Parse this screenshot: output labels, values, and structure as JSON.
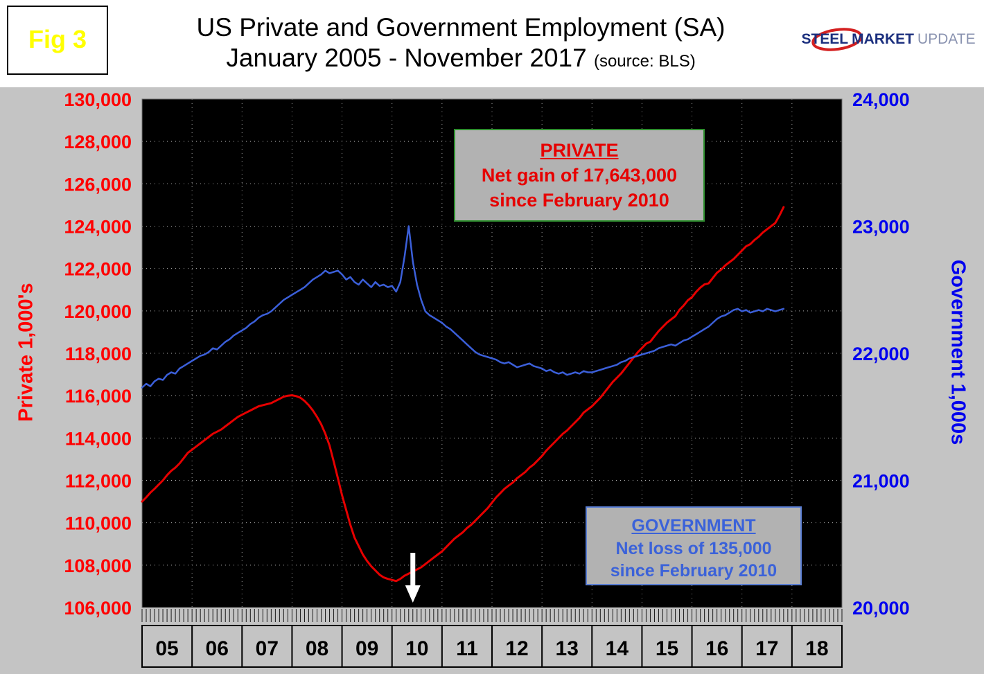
{
  "figure_label": "Fig 3",
  "title_line1": "US Private and Government Employment (SA)",
  "title_line2": "January 2005 - November 2017",
  "title_source": "(source: BLS)",
  "logo": {
    "word1": "STEEL",
    "word2": "MARKET",
    "word3": "UPDATE"
  },
  "annotations": {
    "private": {
      "title": "PRIVATE",
      "line1": "Net gain of 17,643,000",
      "line2": "since February 2010"
    },
    "government": {
      "title": "GOVERNMENT",
      "line1": "Net loss of 135,000",
      "line2": "since February 2010"
    }
  },
  "chart_data": {
    "type": "line",
    "title": "US Private and Government Employment (SA) January 2005 - November 2017",
    "source": "BLS",
    "plot_background": "#000000",
    "grid": "dotted",
    "x_start": "2005-01",
    "x_end": "2017-11",
    "x_axis_years": [
      "05",
      "06",
      "07",
      "08",
      "09",
      "10",
      "11",
      "12",
      "13",
      "14",
      "15",
      "16",
      "17",
      "18"
    ],
    "left_axis": {
      "label": "Private 1,000's",
      "min": 106000,
      "max": 130000,
      "tick_step": 2000,
      "color": "#ff0000"
    },
    "right_axis": {
      "label": "Government 1,000s",
      "min": 20000,
      "max": 24000,
      "tick_step": 1000,
      "color": "#0000ee"
    },
    "arrow_month_index": 65,
    "series": [
      {
        "name": "Private",
        "axis": "left",
        "color": "#e60000",
        "width": 3,
        "values": [
          111000,
          111200,
          111420,
          111600,
          111800,
          112000,
          112250,
          112450,
          112600,
          112800,
          113050,
          113300,
          113450,
          113600,
          113750,
          113900,
          114050,
          114200,
          114300,
          114400,
          114550,
          114700,
          114850,
          115000,
          115100,
          115200,
          115300,
          115400,
          115500,
          115550,
          115600,
          115650,
          115750,
          115850,
          115950,
          116000,
          116020,
          115980,
          115900,
          115750,
          115550,
          115300,
          115000,
          114650,
          114200,
          113650,
          112900,
          112100,
          111300,
          110600,
          109900,
          109300,
          108900,
          108500,
          108200,
          107950,
          107750,
          107550,
          107420,
          107350,
          107300,
          107250,
          107350,
          107500,
          107600,
          107700,
          107800,
          107900,
          108050,
          108200,
          108350,
          108500,
          108650,
          108850,
          109050,
          109250,
          109400,
          109550,
          109750,
          109900,
          110100,
          110300,
          110500,
          110700,
          110950,
          111200,
          111400,
          111600,
          111750,
          111900,
          112100,
          112250,
          112400,
          112600,
          112750,
          112950,
          113150,
          113400,
          113600,
          113800,
          114000,
          114200,
          114350,
          114550,
          114750,
          114950,
          115200,
          115350,
          115500,
          115700,
          115900,
          116150,
          116400,
          116650,
          116850,
          117050,
          117300,
          117550,
          117800,
          118050,
          118250,
          118450,
          118550,
          118800,
          119050,
          119250,
          119450,
          119600,
          119750,
          120050,
          120250,
          120500,
          120650,
          120900,
          121100,
          121250,
          121300,
          121550,
          121800,
          121950,
          122150,
          122300,
          122450,
          122650,
          122850,
          123050,
          123150,
          123350,
          123500,
          123700,
          123850,
          124000,
          124150,
          124500,
          124900
        ]
      },
      {
        "name": "Government",
        "axis": "right",
        "color": "#3b5fd9",
        "width": 2.5,
        "values": [
          21730,
          21760,
          21740,
          21780,
          21800,
          21790,
          21830,
          21850,
          21840,
          21880,
          21900,
          21920,
          21940,
          21960,
          21980,
          21990,
          22010,
          22040,
          22030,
          22060,
          22090,
          22110,
          22140,
          22160,
          22180,
          22200,
          22230,
          22250,
          22280,
          22300,
          22310,
          22330,
          22360,
          22390,
          22420,
          22440,
          22460,
          22480,
          22500,
          22520,
          22550,
          22580,
          22600,
          22620,
          22650,
          22630,
          22640,
          22650,
          22620,
          22580,
          22600,
          22560,
          22540,
          22580,
          22550,
          22520,
          22560,
          22530,
          22540,
          22520,
          22530,
          22485,
          22560,
          22760,
          23000,
          22720,
          22540,
          22420,
          22330,
          22300,
          22280,
          22260,
          22240,
          22210,
          22190,
          22160,
          22130,
          22100,
          22070,
          22040,
          22010,
          21990,
          21980,
          21970,
          21960,
          21950,
          21930,
          21920,
          21930,
          21910,
          21890,
          21900,
          21910,
          21920,
          21900,
          21890,
          21880,
          21860,
          21870,
          21850,
          21840,
          21850,
          21830,
          21840,
          21850,
          21840,
          21860,
          21850,
          21850,
          21860,
          21870,
          21880,
          21890,
          21900,
          21910,
          21930,
          21940,
          21960,
          21970,
          21980,
          21990,
          22000,
          22010,
          22020,
          22040,
          22050,
          22060,
          22070,
          22060,
          22080,
          22100,
          22110,
          22130,
          22150,
          22170,
          22190,
          22210,
          22240,
          22270,
          22290,
          22300,
          22320,
          22340,
          22350,
          22330,
          22340,
          22320,
          22330,
          22340,
          22330,
          22350,
          22340,
          22330,
          22340,
          22350
        ]
      }
    ]
  }
}
